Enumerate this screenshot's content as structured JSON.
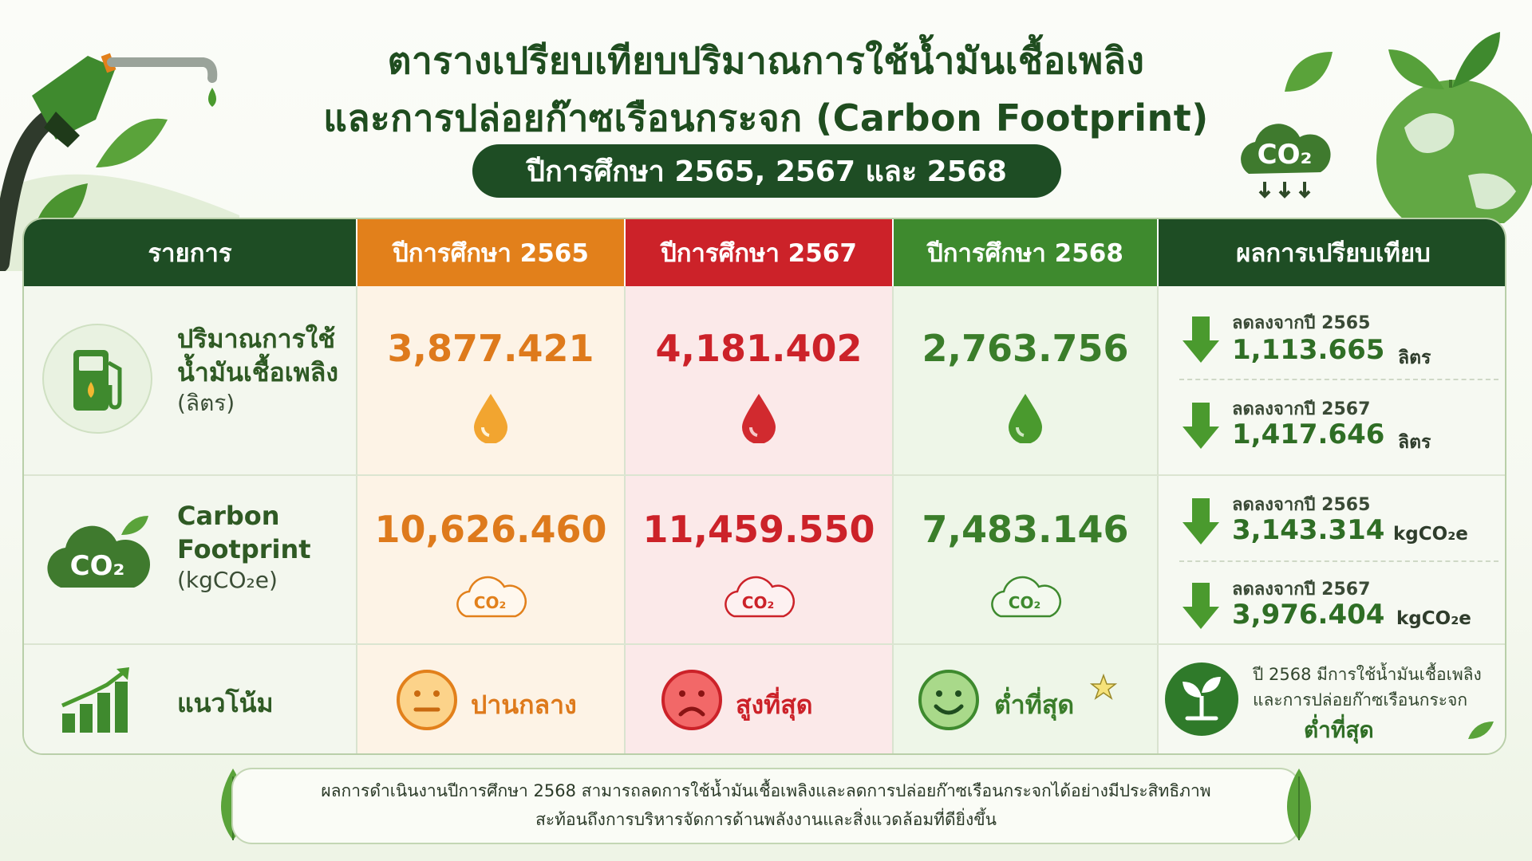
{
  "header": {
    "title_line1": "ตารางเปรียบเทียบปริมาณการใช้น้ำมันเชื้อเพลิง",
    "title_line2": "และการปล่อยก๊าซเรือนกระจก (Carbon Footprint)",
    "subtitle": "ปีการศึกษา 2565, 2567 และ 2568"
  },
  "table": {
    "columns": [
      "รายการ",
      "ปีการศึกษา 2565",
      "ปีการศึกษา 2567",
      "ปีการศึกษา 2568",
      "ผลการเปรียบเทียบ"
    ],
    "fuel": {
      "label_line1": "ปริมาณการใช้",
      "label_line2": "น้ำมันเชื้อเพลิง",
      "unit": "(ลิตร)",
      "values": [
        "3,877.421",
        "4,181.402",
        "2,763.756"
      ],
      "compare": [
        {
          "label": "ลดลงจากปี 2565",
          "value": "1,113.665",
          "unit": "ลิตร"
        },
        {
          "label": "ลดลงจากปี 2567",
          "value": "1,417.646",
          "unit": "ลิตร"
        }
      ]
    },
    "carbon": {
      "label_line1": "Carbon",
      "label_line2": "Footprint",
      "unit": "(kgCO₂e)",
      "values": [
        "10,626.460",
        "11,459.550",
        "7,483.146"
      ],
      "compare": [
        {
          "label": "ลดลงจากปี 2565",
          "value": "3,143.314",
          "unit": "kgCO₂e"
        },
        {
          "label": "ลดลงจากปี 2567",
          "value": "3,976.404",
          "unit": "kgCO₂e"
        }
      ]
    },
    "trend": {
      "label": "แนวโน้ม",
      "values": [
        "ปานกลาง",
        "สูงที่สุด",
        "ต่ำที่สุด"
      ],
      "note_line1": "ปี 2568 มีการใช้น้ำมันเชื้อเพลิง",
      "note_line2": "และการปล่อยก๊าซเรือนกระจก",
      "note_line3": "ต่ำที่สุด"
    }
  },
  "co2_text": "CO₂",
  "footer": {
    "line1": "ผลการดำเนินงานปีการศึกษา 2568 สามารถลดการใช้น้ำมันเชื้อเพลิงและลดการปล่อยก๊าซเรือนกระจกได้อย่างมีประสิทธิภาพ",
    "line2": "สะท้อนถึงการบริหารจัดการด้านพลังงานและสิ่งแวดล้อมที่ดียิ่งขึ้น"
  },
  "colors": {
    "dark_green": "#1e4d24",
    "orange": "#e2801b",
    "red": "#cc2229",
    "green": "#3e8a2e"
  },
  "icons": [
    "fuel-nozzle-icon",
    "globe-icon",
    "co2-cloud-icon",
    "fuel-pump-icon",
    "drop-icon",
    "smiley-icon",
    "bar-chart-icon",
    "sprout-icon",
    "arrow-down-icon",
    "star-icon",
    "leaf-icon"
  ]
}
